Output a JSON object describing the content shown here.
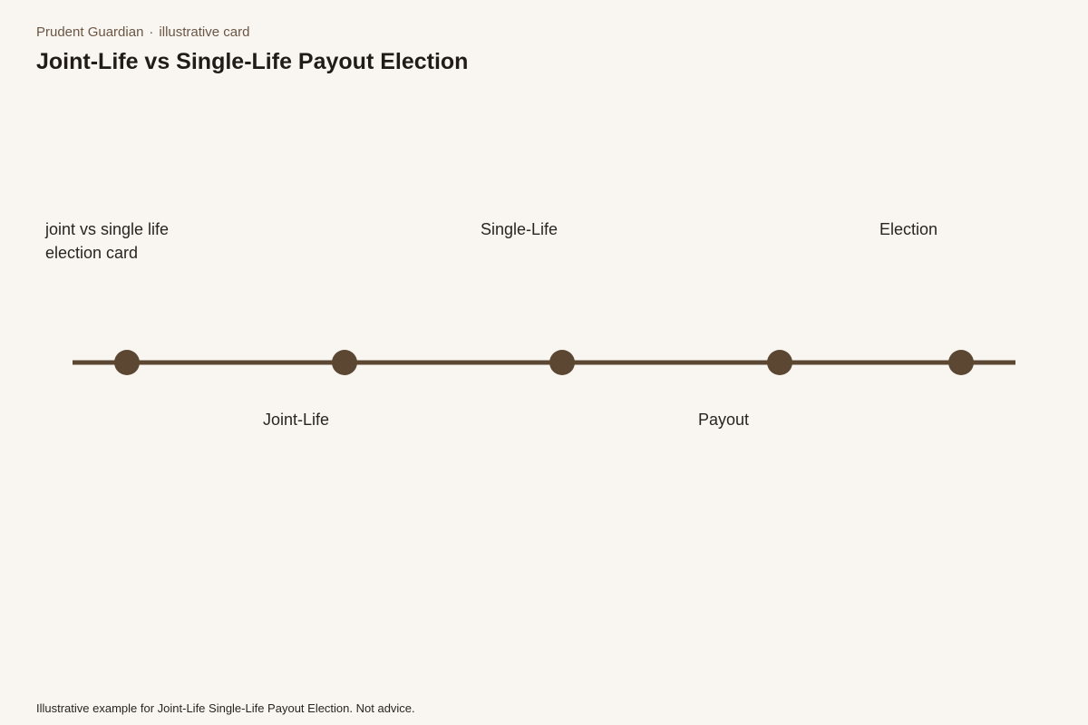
{
  "header": {
    "brand": "Prudent Guardian",
    "separator": "·",
    "tag": "illustrative card"
  },
  "title": "Joint-Life vs Single-Life Payout Election",
  "nodes": [
    {
      "label": "joint vs single life election card"
    },
    {
      "label": "Joint-Life"
    },
    {
      "label": "Single-Life"
    },
    {
      "label": "Payout"
    },
    {
      "label": "Election"
    }
  ],
  "footer": "Illustrative example for Joint-Life Single-Life Payout Election. Not advice."
}
